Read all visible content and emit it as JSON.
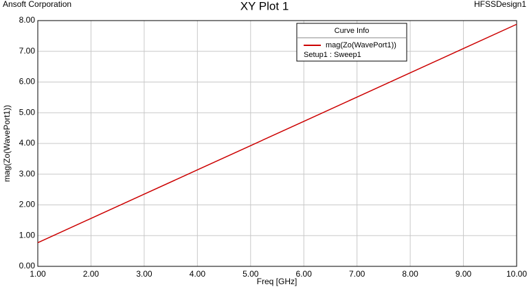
{
  "chart_data": {
    "type": "line",
    "header_left": "Ansoft Corporation",
    "title": "XY Plot 1",
    "header_right": "HFSSDesign1",
    "x_label": "Freq [GHz]",
    "y_label": "mag(Zo(WavePort1))",
    "legend_title": "Curve Info",
    "legend_position": "upper right",
    "x": [
      1,
      2,
      3,
      4,
      5,
      6,
      7,
      8,
      9,
      10
    ],
    "series": [
      {
        "name": "mag(Zo(WavePort1))",
        "setup": "Setup1 : Sweep1",
        "color": "#cc0000",
        "values": [
          0.77,
          1.56,
          2.35,
          3.14,
          3.93,
          4.72,
          5.51,
          6.3,
          7.09,
          7.88
        ]
      }
    ],
    "xlim": [
      1,
      10
    ],
    "xticks": [
      {
        "value": 1,
        "label": "1.00"
      },
      {
        "value": 2,
        "label": "2.00"
      },
      {
        "value": 3,
        "label": "3.00"
      },
      {
        "value": 4,
        "label": "4.00"
      },
      {
        "value": 5,
        "label": "5.00"
      },
      {
        "value": 6,
        "label": "6.00"
      },
      {
        "value": 7,
        "label": "7.00"
      },
      {
        "value": 8,
        "label": "8.00"
      },
      {
        "value": 9,
        "label": "9.00"
      },
      {
        "value": 10,
        "label": "10.00"
      }
    ],
    "ylim": [
      0,
      8
    ],
    "yticks": [
      {
        "value": 0,
        "label": "0.00"
      },
      {
        "value": 1,
        "label": "1.00"
      },
      {
        "value": 2,
        "label": "2.00"
      },
      {
        "value": 3,
        "label": "3.00"
      },
      {
        "value": 4,
        "label": "4.00"
      },
      {
        "value": 5,
        "label": "5.00"
      },
      {
        "value": 6,
        "label": "6.00"
      },
      {
        "value": 7,
        "label": "7.00"
      },
      {
        "value": 8,
        "label": "8.00"
      }
    ],
    "grid": true
  }
}
